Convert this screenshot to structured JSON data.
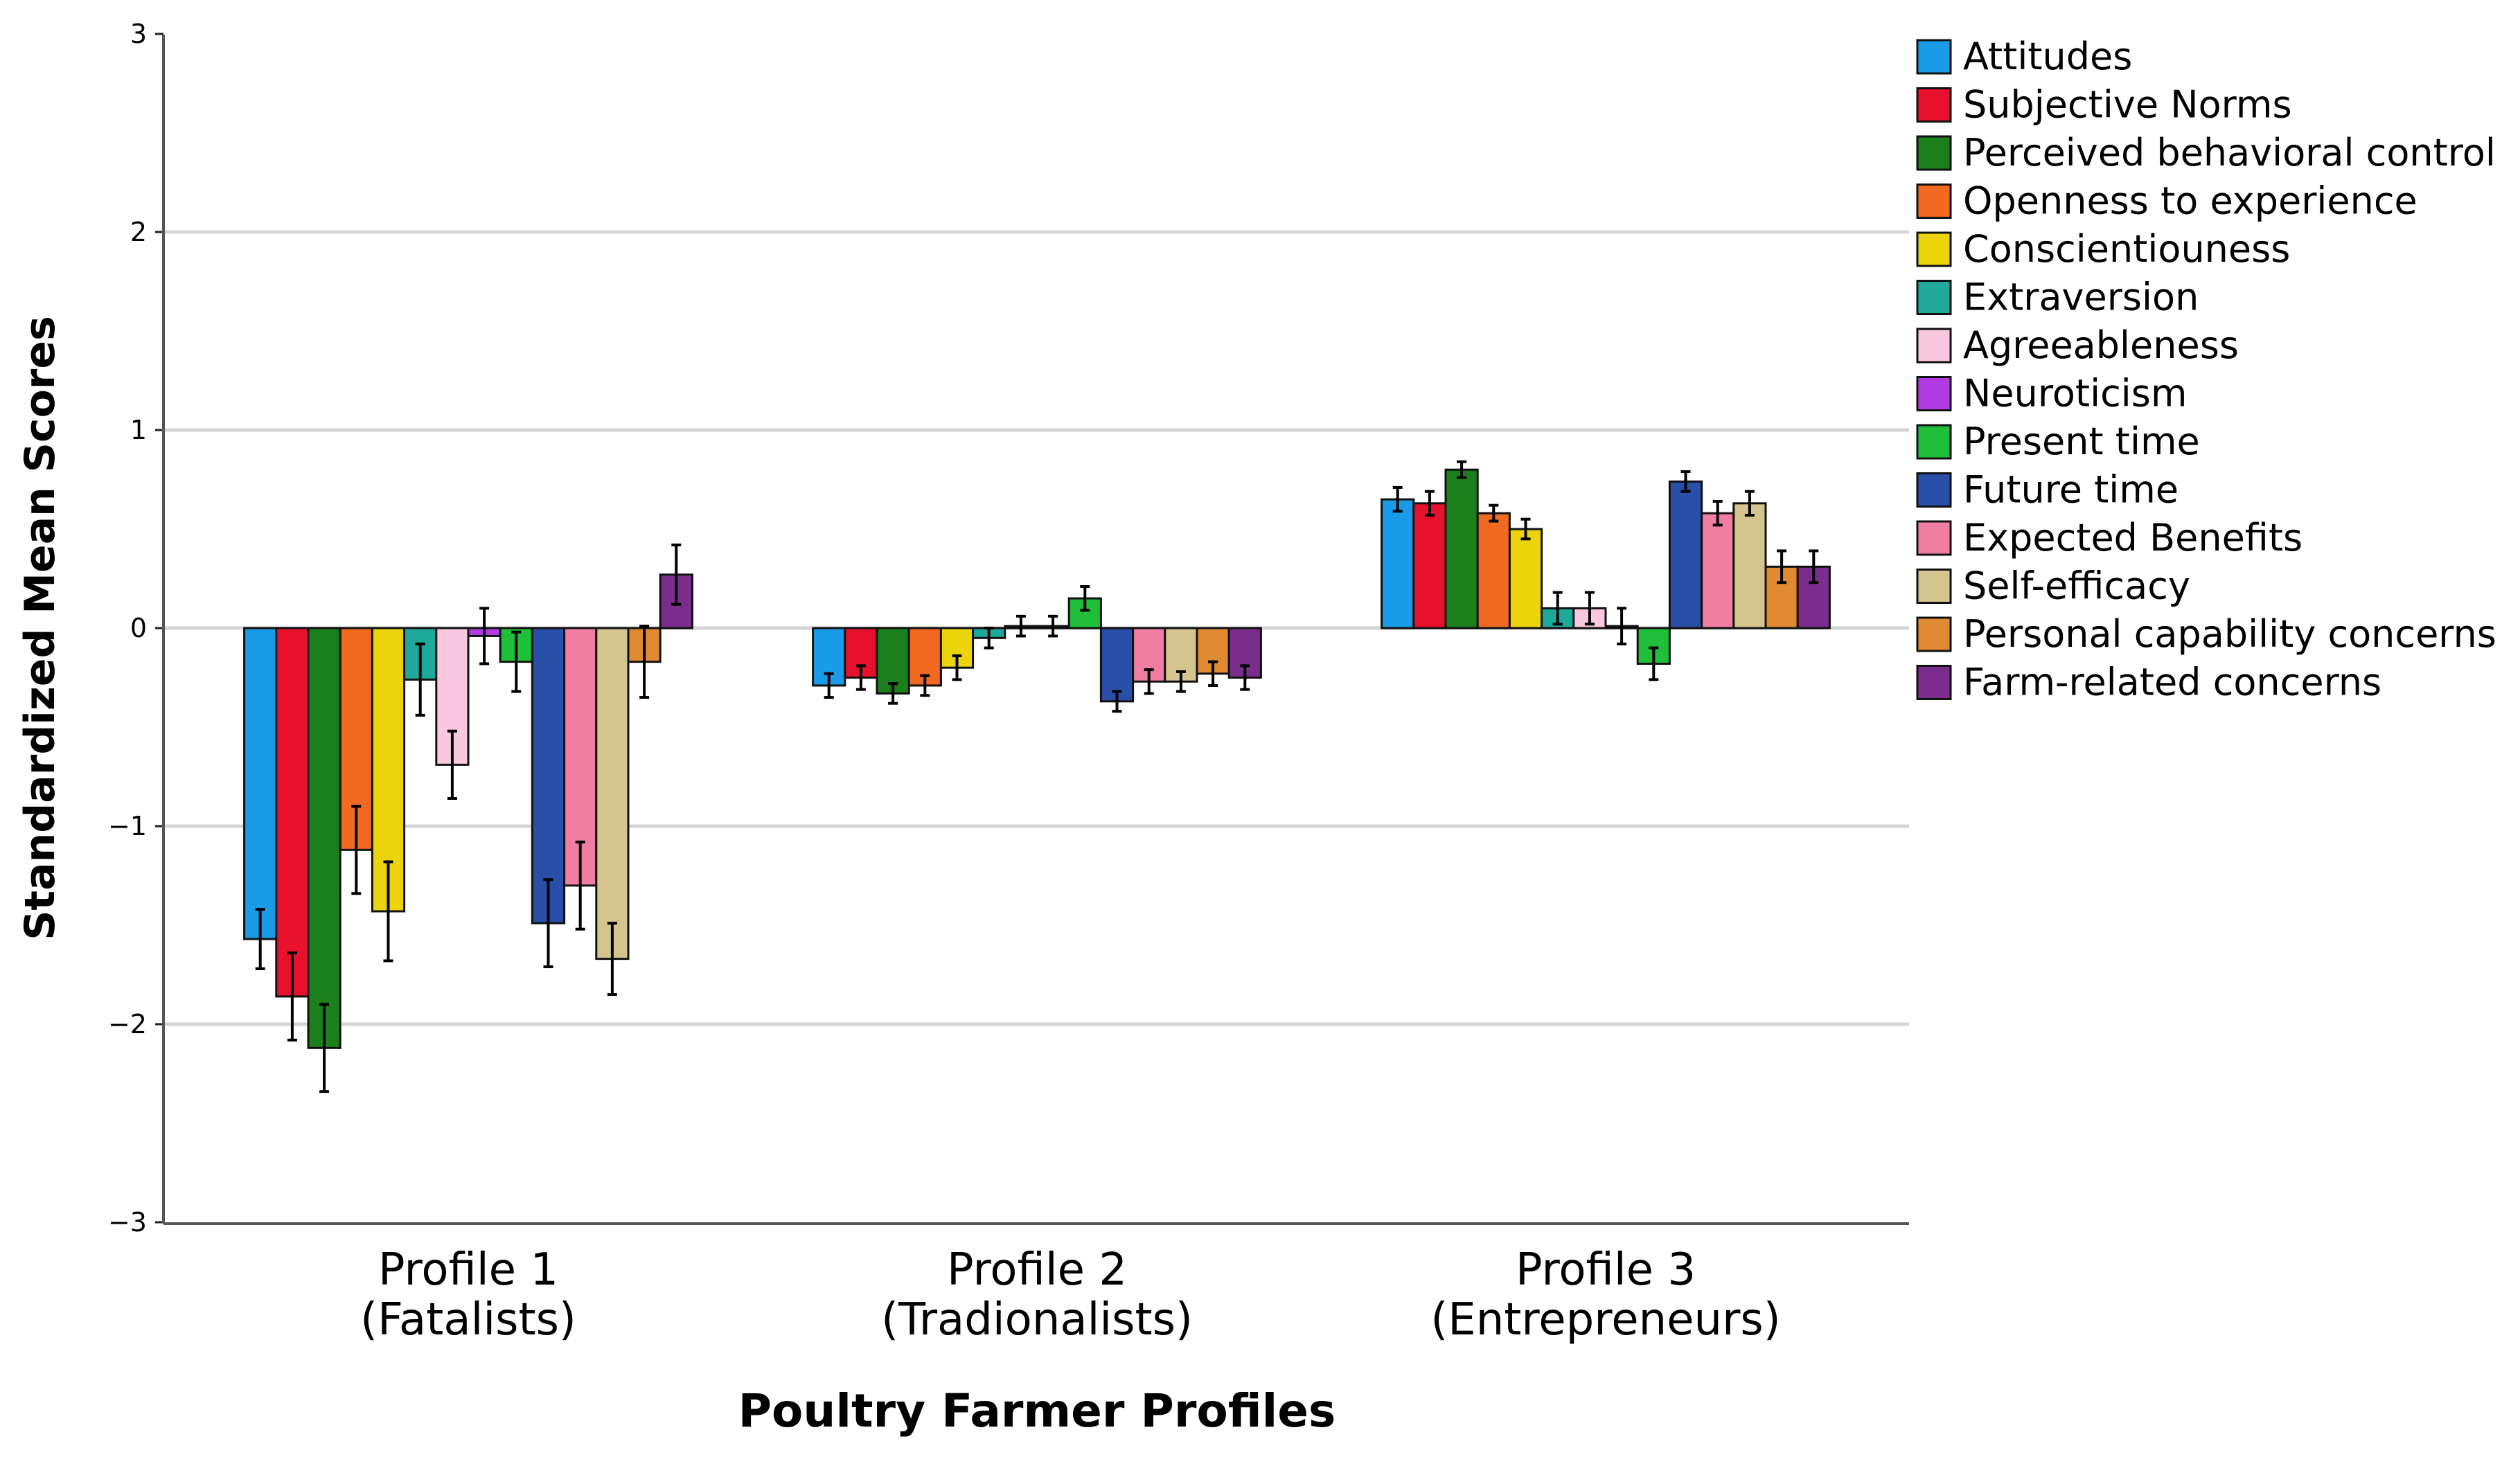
{
  "chart_data": {
    "type": "bar",
    "title": "",
    "xlabel": "Poultry Farmer Profiles",
    "ylabel": "Standardized Mean Scores",
    "ylim": [
      -3,
      3
    ],
    "yticks": [
      "3",
      "2",
      "1",
      "0",
      "−1",
      "−2",
      "−3"
    ],
    "grid": true,
    "legend_position": "right",
    "categories": [
      [
        "Profile 1",
        "(Fatalists)"
      ],
      [
        "Profile 2",
        "(Tradionalists)"
      ],
      [
        "Profile 3",
        "(Entrepreneurs)"
      ]
    ],
    "series": [
      {
        "name": "Attitudes",
        "color": "#1a9be8",
        "values": [
          -1.57,
          -0.29,
          0.65
        ],
        "err": [
          0.15,
          0.06,
          0.06
        ]
      },
      {
        "name": "Subjective Norms",
        "color": "#e8112d",
        "values": [
          -1.86,
          -0.25,
          0.63
        ],
        "err": [
          0.22,
          0.06,
          0.06
        ]
      },
      {
        "name": "Perceived behavioral control",
        "color": "#1b7f1b",
        "values": [
          -2.12,
          -0.33,
          0.8
        ],
        "err": [
          0.22,
          0.05,
          0.04
        ]
      },
      {
        "name": "Openness to experience",
        "color": "#f26a22",
        "values": [
          -1.12,
          -0.29,
          0.58
        ],
        "err": [
          0.22,
          0.05,
          0.04
        ]
      },
      {
        "name": "Conscientiouness",
        "color": "#ebd40c",
        "values": [
          -1.43,
          -0.2,
          0.5
        ],
        "err": [
          0.25,
          0.06,
          0.05
        ]
      },
      {
        "name": "Extraversion",
        "color": "#1fa99a",
        "values": [
          -0.26,
          -0.05,
          0.1
        ],
        "err": [
          0.18,
          0.05,
          0.08
        ]
      },
      {
        "name": "Agreeableness",
        "color": "#fbc9df",
        "values": [
          -0.69,
          0.01,
          0.1
        ],
        "err": [
          0.17,
          0.05,
          0.08
        ]
      },
      {
        "name": "Neuroticism",
        "color": "#b33be6",
        "values": [
          -0.04,
          0.01,
          0.01
        ],
        "err": [
          0.14,
          0.05,
          0.09
        ]
      },
      {
        "name": "Present time",
        "color": "#1fbf3a",
        "values": [
          -0.17,
          0.15,
          -0.18
        ],
        "err": [
          0.15,
          0.06,
          0.08
        ]
      },
      {
        "name": "Future time",
        "color": "#2a4fa8",
        "values": [
          -1.49,
          -0.37,
          0.74
        ],
        "err": [
          0.22,
          0.05,
          0.05
        ]
      },
      {
        "name": "Expected Benefits",
        "color": "#f07ea3",
        "values": [
          -1.3,
          -0.27,
          0.58
        ],
        "err": [
          0.22,
          0.06,
          0.06
        ]
      },
      {
        "name": "Self-efficacy",
        "color": "#d4c58f",
        "values": [
          -1.67,
          -0.27,
          0.63
        ],
        "err": [
          0.18,
          0.05,
          0.06
        ]
      },
      {
        "name": "Personal capability concerns",
        "color": "#e08a33",
        "values": [
          -0.17,
          -0.23,
          0.31
        ],
        "err": [
          0.18,
          0.06,
          0.08
        ]
      },
      {
        "name": "Farm-related concerns",
        "color": "#7b2d8e",
        "values": [
          0.27,
          -0.25,
          0.31
        ],
        "err": [
          0.15,
          0.06,
          0.08
        ]
      }
    ]
  }
}
